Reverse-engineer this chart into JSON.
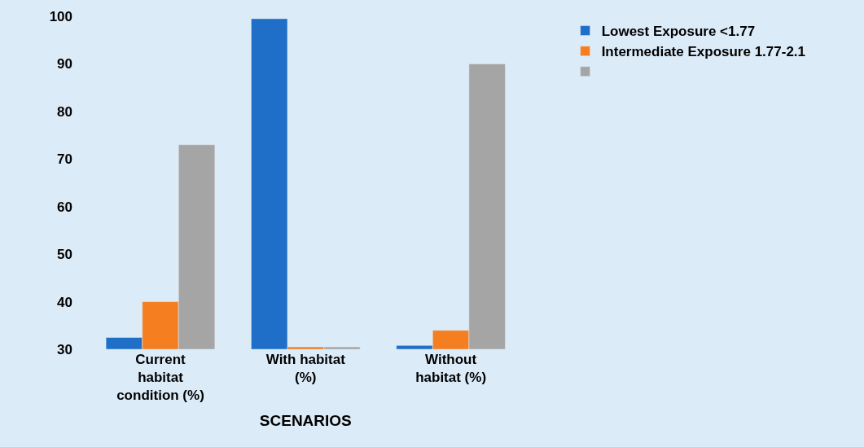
{
  "chart_data": {
    "type": "bar",
    "xlabel": "SCENARIOS",
    "categories": [
      "Current habitat condition (%)",
      "With habitat (%)",
      "Without habitat (%)"
    ],
    "series": [
      {
        "name": "Lowest Exposure <1.77",
        "color": "#1f6fc8",
        "values": [
          32.5,
          99.5,
          30.8
        ]
      },
      {
        "name": "Intermediate Exposure 1.77-2.1",
        "color": "#f57f20",
        "values": [
          40,
          30.5,
          34
        ]
      },
      {
        "color": "#a5a5a5",
        "values": [
          73,
          30.5,
          90
        ]
      }
    ],
    "ylim": [
      30,
      100
    ],
    "yticks": [
      30,
      40,
      50,
      60,
      70,
      80,
      90,
      100
    ],
    "grid": false,
    "legend": "top right"
  }
}
